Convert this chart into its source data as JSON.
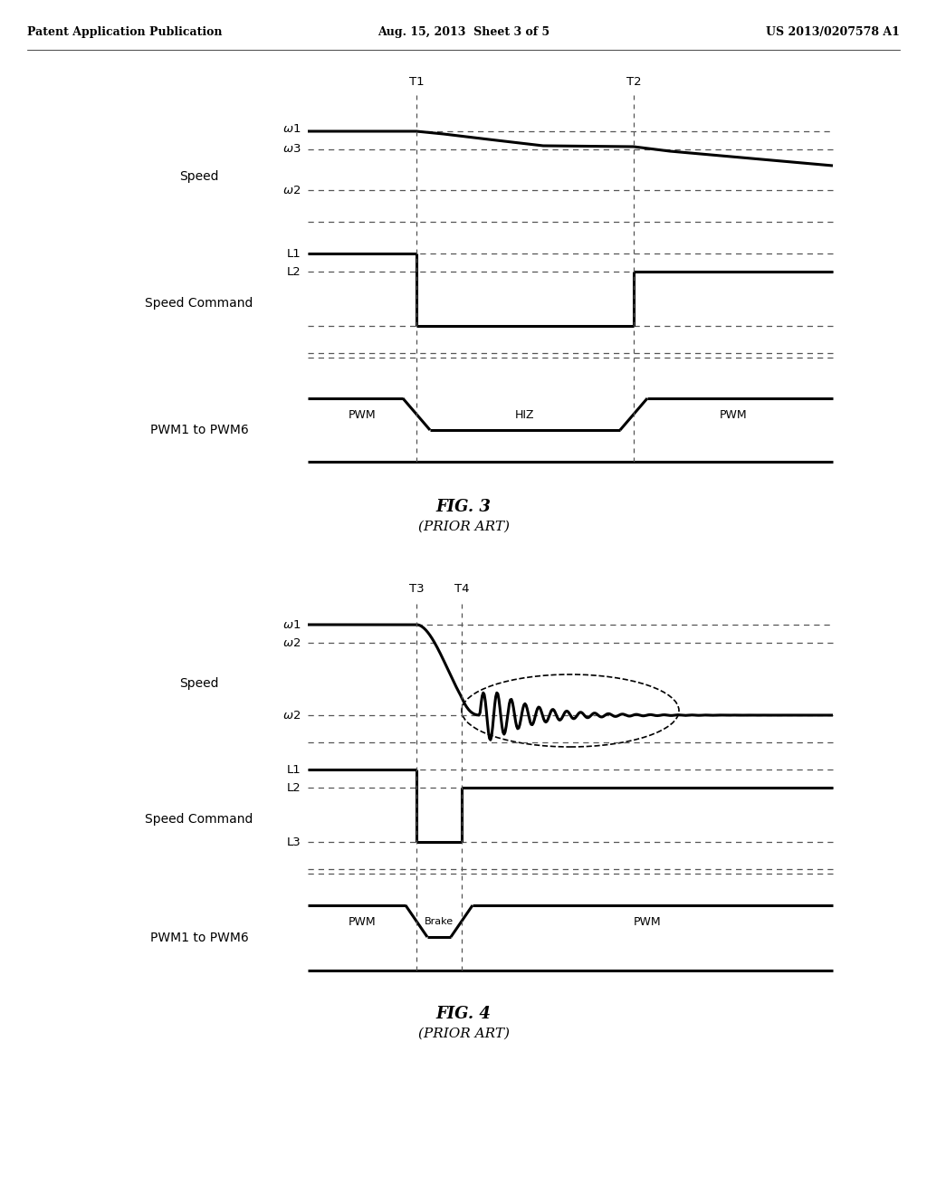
{
  "fig_width": 10.24,
  "fig_height": 13.2,
  "bg_color": "#ffffff",
  "header_left": "Patent Application Publication",
  "header_mid": "Aug. 15, 2013  Sheet 3 of 5",
  "header_right": "US 2013/0207578 A1",
  "fig3_title": "FIG. 3",
  "fig3_subtitle": "(PRIOR ART)",
  "fig4_title": "FIG. 4",
  "fig4_subtitle": "(PRIOR ART)"
}
